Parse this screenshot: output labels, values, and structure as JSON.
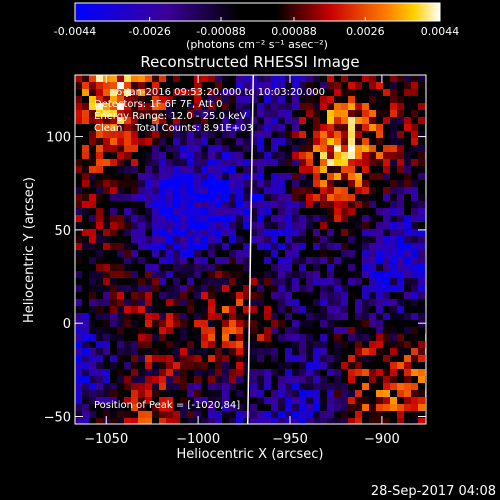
{
  "chart_data": {
    "type": "heatmap",
    "title": "Reconstructed RHESSI Image",
    "xlabel": "Heliocentric X (arcsec)",
    "ylabel": "Heliocentric Y (arcsec)",
    "x_ticks": [
      -1050,
      -1000,
      -950,
      -900
    ],
    "y_ticks": [
      -50,
      0,
      50,
      100
    ],
    "xlim": [
      -1067,
      -876
    ],
    "ylim": [
      -54,
      133
    ],
    "colorbar": {
      "ticks": [
        "-0.0044",
        "-0.0026",
        "-0.00088",
        "0.00088",
        "0.0026",
        "0.0044"
      ],
      "vmin": -0.0044,
      "vmax": 0.0044,
      "colors": [
        "#0000ff",
        "#3a0099",
        "#6a00b0",
        "#000000",
        "#c80000",
        "#ff7a00",
        "#ffd000",
        "#ffffff"
      ]
    },
    "grid": false,
    "limb": {
      "x_at_ylim": [
        -973,
        -970
      ]
    },
    "annotations": [
      "6-Jan-2016 09:53:20.000 to 10:03:20.000",
      "Detectors: 1F 6F 7F, Att 0",
      "Energy Range: 12.0 - 25.0 keV",
      "Clean    Total Counts: 8.91E+03",
      "Position of Peak = [-1020,84]"
    ],
    "peak": {
      "x": -1020,
      "y": 84
    }
  },
  "colorbar_units": "(photons cm⁻² s⁻¹ asec⁻²)",
  "timestamp": "28-Sep-2017 04:08"
}
